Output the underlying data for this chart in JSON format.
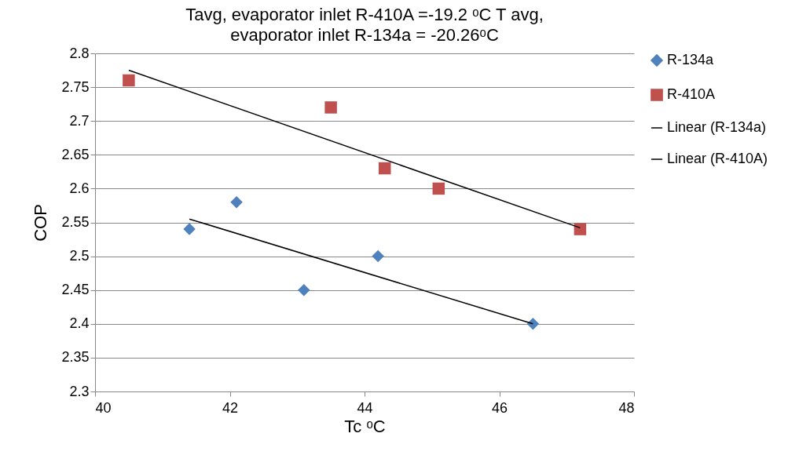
{
  "chart_data": {
    "type": "scatter",
    "title": "Tavg, evaporator inlet  R-410A =-19.2 ᵒC  T avg, evaporator inlet  R-134a = -20.26ᵒC",
    "xlabel": "Tc ᵒC",
    "ylabel": "COP",
    "xlim": [
      40,
      48
    ],
    "xticks": [
      40,
      42,
      44,
      46,
      48
    ],
    "ylim": [
      2.3,
      2.8
    ],
    "yticks": [
      2.3,
      2.35,
      2.4,
      2.45,
      2.5,
      2.55,
      2.6,
      2.65,
      2.7,
      2.75,
      2.8
    ],
    "grid": "y",
    "legend": "right",
    "series": [
      {
        "name": "R-134a",
        "type": "scatter",
        "marker": "diamond",
        "color": "#4f81bd",
        "x": [
          41.4,
          42.1,
          43.1,
          44.2,
          46.5
        ],
        "values": [
          2.54,
          2.58,
          2.45,
          2.5,
          2.4
        ]
      },
      {
        "name": "R-410A",
        "type": "scatter",
        "marker": "square",
        "color": "#c0504d",
        "x": [
          40.5,
          43.5,
          44.3,
          45.1,
          47.2
        ],
        "values": [
          2.76,
          2.72,
          2.63,
          2.6,
          2.54
        ]
      },
      {
        "name": "Linear (R-134a)",
        "type": "line",
        "color": "#000000",
        "x": [
          41.4,
          46.5
        ],
        "values": [
          2.555,
          2.4
        ]
      },
      {
        "name": "Linear (R-410A)",
        "type": "line",
        "color": "#000000",
        "x": [
          40.5,
          47.2
        ],
        "values": [
          2.775,
          2.542
        ]
      }
    ]
  }
}
